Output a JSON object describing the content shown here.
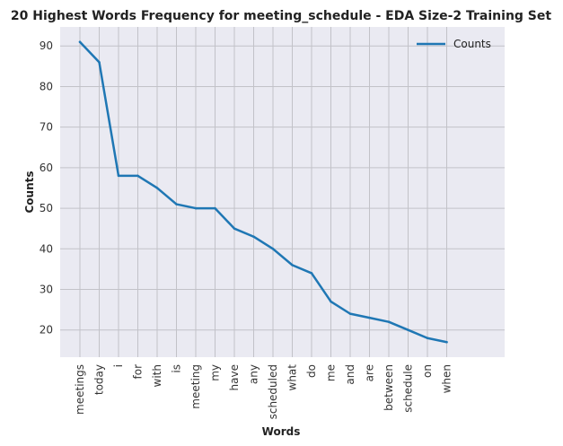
{
  "chart_data": {
    "type": "line",
    "title": "20 Highest Words Frequency for meeting_schedule - EDA Size-2 Training Set",
    "xlabel": "Words",
    "ylabel": "Counts",
    "categories": [
      "meetings",
      "today",
      "i",
      "for",
      "with",
      "is",
      "meeting",
      "my",
      "have",
      "any",
      "scheduled",
      "what",
      "do",
      "me",
      "and",
      "are",
      "between",
      "schedule",
      "on",
      "when"
    ],
    "series": [
      {
        "name": "Counts",
        "color": "#1f77b4",
        "values": [
          91,
          86,
          58,
          58,
          55,
          51,
          50,
          50,
          45,
          43,
          40,
          36,
          34,
          27,
          24,
          23,
          22,
          20,
          18,
          17
        ]
      }
    ],
    "yticks": [
      20,
      30,
      40,
      50,
      60,
      70,
      80,
      90
    ],
    "ylim": [
      13.3,
      94.7
    ],
    "grid": true,
    "legend_position": "top-right",
    "background_color": "#eaeaf2"
  }
}
